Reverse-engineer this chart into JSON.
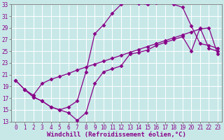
{
  "xlabel": "Windchill (Refroidissement éolien,°C)",
  "xlim": [
    -0.5,
    23.5
  ],
  "ylim": [
    13,
    33
  ],
  "yticks": [
    13,
    15,
    17,
    19,
    21,
    23,
    25,
    27,
    29,
    31,
    33
  ],
  "xticks": [
    0,
    1,
    2,
    3,
    4,
    5,
    6,
    7,
    8,
    9,
    10,
    11,
    12,
    13,
    14,
    15,
    16,
    17,
    18,
    19,
    20,
    21,
    22,
    23
  ],
  "background_color": "#c8e8e8",
  "grid_color": "#aacccc",
  "line_color": "#880088",
  "line1_x": [
    0,
    1,
    2,
    3,
    4,
    5,
    6,
    7,
    8,
    9,
    10,
    11,
    12,
    13,
    14,
    15,
    16,
    17,
    18,
    19,
    20,
    21,
    22,
    23
  ],
  "line1_y": [
    20.0,
    18.5,
    17.5,
    19.5,
    20.2,
    20.7,
    21.2,
    21.8,
    22.3,
    22.8,
    23.3,
    23.8,
    24.3,
    24.8,
    25.3,
    25.8,
    26.3,
    26.8,
    27.3,
    27.8,
    28.3,
    28.8,
    29.0,
    24.5
  ],
  "line2_x": [
    0,
    1,
    2,
    3,
    4,
    5,
    6,
    7,
    8,
    9,
    10,
    11,
    12,
    13,
    14,
    15,
    16,
    17,
    18,
    19,
    20,
    21,
    22,
    23
  ],
  "line2_y": [
    20.0,
    18.5,
    17.2,
    16.5,
    15.5,
    15.0,
    14.5,
    13.2,
    14.5,
    19.5,
    21.5,
    22.0,
    22.5,
    24.5,
    24.8,
    25.2,
    26.0,
    26.5,
    27.0,
    27.5,
    25.0,
    29.0,
    25.5,
    25.0
  ],
  "line3_x": [
    1,
    2,
    3,
    4,
    5,
    6,
    7,
    8,
    9,
    10,
    11,
    12,
    13,
    14,
    15,
    16,
    17,
    18,
    19,
    20,
    21,
    22,
    23
  ],
  "line3_y": [
    18.5,
    17.2,
    16.5,
    15.5,
    15.0,
    15.5,
    16.5,
    21.5,
    28.0,
    29.5,
    31.5,
    33.0,
    33.5,
    33.2,
    33.0,
    33.3,
    33.5,
    33.0,
    32.5,
    29.3,
    26.3,
    26.0,
    25.5
  ],
  "marker": "D",
  "markersize": 2.5,
  "linewidth": 0.9,
  "tick_fontsize": 5.5,
  "xlabel_fontsize": 6.5
}
